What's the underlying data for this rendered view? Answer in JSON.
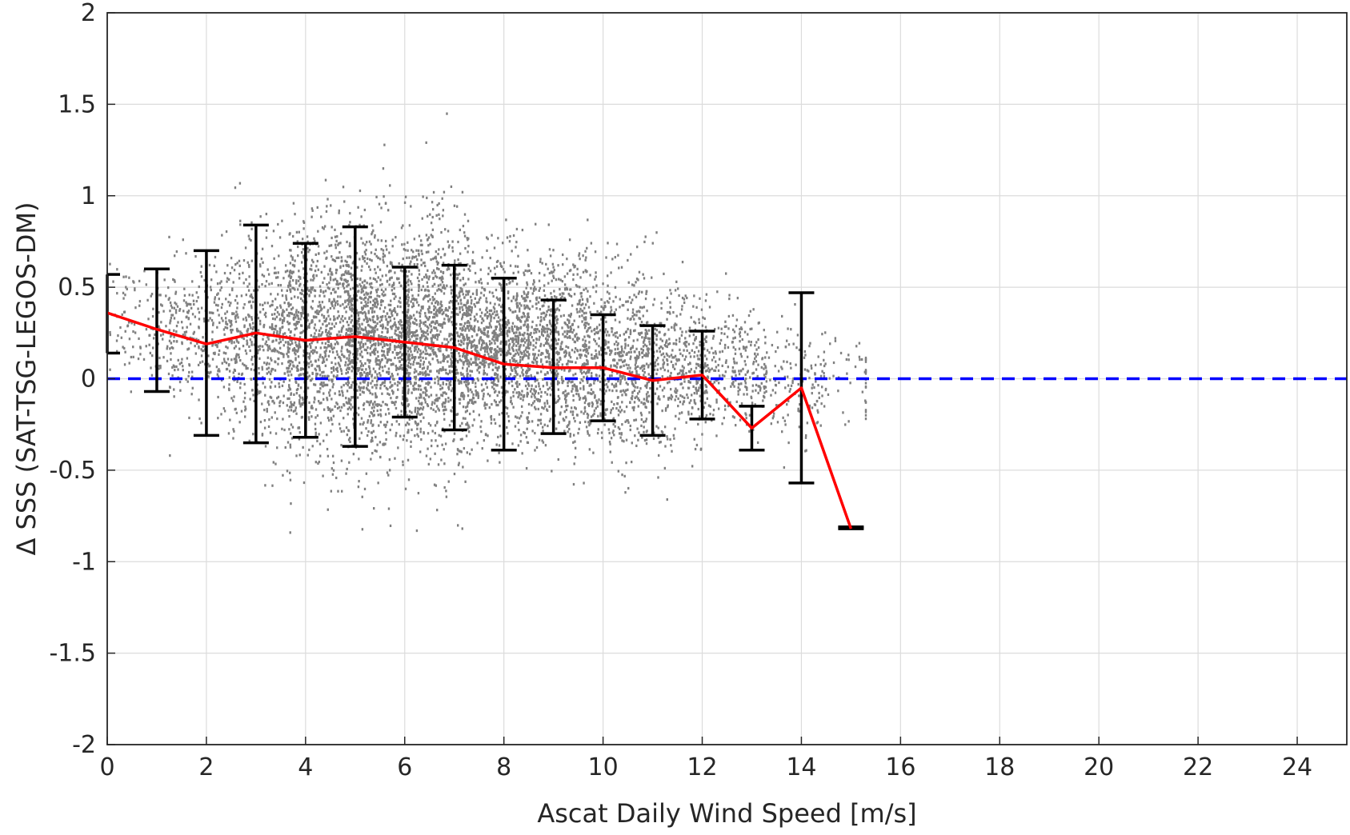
{
  "chart_data": {
    "type": "scatter",
    "xlabel": "Ascat Daily Wind Speed [m/s]",
    "ylabel": "Δ SSS (SAT-TSG-LEGOS-DM)",
    "xlim": [
      0,
      25
    ],
    "ylim": [
      -2,
      2
    ],
    "xticks": [
      0,
      2,
      4,
      6,
      8,
      10,
      12,
      14,
      16,
      18,
      20,
      22,
      24
    ],
    "xtick_labels": [
      "0",
      "2",
      "4",
      "6",
      "8",
      "10",
      "12",
      "14",
      "16",
      "18",
      "20",
      "22",
      "24"
    ],
    "yticks": [
      -2,
      -1.5,
      -1,
      -0.5,
      0,
      0.5,
      1,
      1.5,
      2
    ],
    "ytick_labels": [
      "-2",
      "-1.5",
      "-1",
      "-0.5",
      "0",
      "0.5",
      "1",
      "1.5",
      "2"
    ],
    "grid": true,
    "series": [
      {
        "kind": "scatter",
        "color": "#808080",
        "description_of_density": "dense cloud of points centered near 0.2, wind speeds 0 to 15",
        "centers": [
          0.3,
          0.25,
          0.2,
          0.22,
          0.2,
          0.2,
          0.18,
          0.15,
          0.1,
          0.05,
          0.05,
          0.0,
          0.02
        ],
        "spreads": [
          0.28,
          0.35,
          0.5,
          0.58,
          0.55,
          0.6,
          0.42,
          0.45,
          0.47,
          0.38,
          0.3,
          0.3,
          0.25
        ],
        "counts": [
          120,
          280,
          520,
          900,
          1100,
          1050,
          900,
          750,
          600,
          420,
          260,
          140,
          50
        ]
      },
      {
        "kind": "line",
        "color": "#ff0000",
        "x": [
          0,
          1,
          2,
          3,
          4,
          5,
          6,
          7,
          8,
          9,
          10,
          11,
          12,
          13,
          14,
          15
        ],
        "y": [
          0.36,
          0.27,
          0.19,
          0.25,
          0.21,
          0.23,
          0.2,
          0.17,
          0.08,
          0.06,
          0.06,
          -0.01,
          0.02,
          -0.27,
          -0.05,
          -0.82
        ]
      },
      {
        "kind": "errorbar",
        "color": "#000000",
        "x": [
          0,
          1,
          2,
          3,
          4,
          5,
          6,
          7,
          8,
          9,
          10,
          11,
          12,
          13,
          14,
          15
        ],
        "upper": [
          0.57,
          0.6,
          0.7,
          0.84,
          0.74,
          0.83,
          0.61,
          0.62,
          0.55,
          0.43,
          0.35,
          0.29,
          0.26,
          -0.15,
          0.47,
          -0.81
        ],
        "lower": [
          0.14,
          -0.07,
          -0.31,
          -0.35,
          -0.32,
          -0.37,
          -0.21,
          -0.28,
          -0.39,
          -0.3,
          -0.23,
          -0.31,
          -0.22,
          -0.39,
          -0.57,
          -0.82
        ]
      },
      {
        "kind": "hline",
        "color": "#0000ff",
        "y": 0,
        "style": "dashed"
      }
    ]
  }
}
